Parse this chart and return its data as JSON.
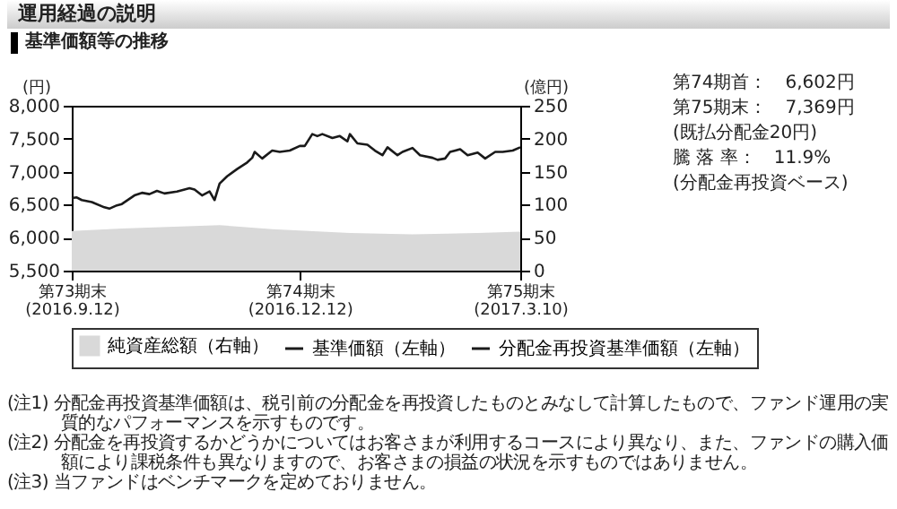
{
  "chart_data": {
    "type": "line",
    "title": "運用経過の説明",
    "subtitle": "基準価額等の推移",
    "ylabel": "(円)",
    "y2label": "(億円)",
    "x": [
      "2016-09-12",
      "2016-09-14",
      "2016-09-16",
      "2016-09-20",
      "2016-09-25",
      "2016-09-27",
      "2016-09-30",
      "2016-10-02",
      "2016-10-07",
      "2016-10-10",
      "2016-10-13",
      "2016-10-16",
      "2016-10-19",
      "2016-10-24",
      "2016-10-29",
      "2016-10-31",
      "2016-11-03",
      "2016-11-06",
      "2016-11-08",
      "2016-11-10",
      "2016-11-13",
      "2016-11-17",
      "2016-11-21",
      "2016-11-23",
      "2016-11-24",
      "2016-11-27",
      "2016-12-01",
      "2016-12-04",
      "2016-12-08",
      "2016-12-12",
      "2016-12-14",
      "2016-12-17",
      "2016-12-19",
      "2016-12-21",
      "2016-12-25",
      "2016-12-28",
      "2016-12-31",
      "2017-01-01",
      "2017-01-04",
      "2017-01-08",
      "2017-01-11",
      "2017-01-14",
      "2017-01-16",
      "2017-01-20",
      "2017-01-22",
      "2017-01-26",
      "2017-01-29",
      "2017-02-03",
      "2017-02-05",
      "2017-02-08",
      "2017-02-10",
      "2017-02-14",
      "2017-02-17",
      "2017-02-21",
      "2017-02-24",
      "2017-02-28",
      "2017-03-03",
      "2017-03-07",
      "2017-03-10"
    ],
    "series": [
      {
        "name": "純資産総額（右軸）",
        "type": "area",
        "axis": "y2",
        "color": "#d9d9d9",
        "x": [
          "2016-09-12",
          "2016-10-02",
          "2016-11-10",
          "2016-12-01",
          "2017-01-01",
          "2017-01-26",
          "2017-02-21",
          "2017-03-10"
        ],
        "values": [
          60,
          64,
          69,
          63,
          57,
          55,
          57,
          59
        ]
      },
      {
        "name": "基準価額（左軸）",
        "color": "#1a1a1a",
        "values": [
          6600,
          6610,
          6570,
          6540,
          6460,
          6440,
          6490,
          6510,
          6640,
          6680,
          6660,
          6710,
          6670,
          6700,
          6750,
          6730,
          6640,
          6700,
          6570,
          6820,
          6930,
          7040,
          7140,
          7210,
          7300,
          7200,
          7320,
          7300,
          7320,
          7390,
          7390,
          7570,
          7540,
          7570,
          7510,
          7540,
          7460,
          7570,
          7430,
          7410,
          7320,
          7250,
          7370,
          7250,
          7300,
          7360,
          7250,
          7210,
          7180,
          7200,
          7300,
          7340,
          7250,
          7290,
          7200,
          7300,
          7300,
          7320,
          7370
        ]
      },
      {
        "name": "分配金再投資基準価額（左軸）",
        "color": "#1a1a1a",
        "values": [
          null,
          null,
          null,
          null,
          null,
          null,
          null,
          null,
          null,
          null,
          null,
          null,
          null,
          null,
          null,
          null,
          null,
          null,
          null,
          null,
          null,
          null,
          null,
          null,
          null,
          null,
          null,
          null,
          null,
          null,
          null,
          null,
          null,
          null,
          null,
          null,
          null,
          null,
          null,
          null,
          null,
          null,
          null,
          null,
          null,
          null,
          null,
          null,
          null,
          null,
          null,
          null,
          null,
          null,
          null,
          null,
          null,
          null,
          null
        ]
      }
    ],
    "xlim": [
      "2016-09-12",
      "2017-03-10"
    ],
    "xticks": [
      {
        "value": "2016-09-12",
        "label": "第73期末\n(2016.9.12)"
      },
      {
        "value": "2016-12-12",
        "label": "第74期末\n(2016.12.12)"
      },
      {
        "value": "2017-03-10",
        "label": "第75期末\n(2017.3.10)"
      }
    ],
    "ylim": [
      5500,
      8000
    ],
    "yticks": [
      {
        "value": 5500,
        "label": "5,500"
      },
      {
        "value": 6000,
        "label": "6,000"
      },
      {
        "value": 6500,
        "label": "6,500"
      },
      {
        "value": 7000,
        "label": "7,000"
      },
      {
        "value": 7500,
        "label": "7,500"
      },
      {
        "value": 8000,
        "label": "8,000"
      }
    ],
    "y2lim": [
      0,
      250
    ],
    "y2ticks": [
      0,
      50,
      100,
      150,
      200,
      250
    ],
    "grid": false,
    "legend": "bottom",
    "line_style": "solid",
    "marker": "none",
    "annotations": [
      "第74期首：　6,602円",
      "第75期末：　7,369円",
      "(既払分配金20円)",
      "騰 落 率：　11.9%",
      "(分配金再投資ベース)",
      "(注1) 分配金再投資基準価額は、税引前の分配金を再投資したものとみなして計算したもので、ファンド運用の実質的なパフォーマンスを示すものです。",
      "(注2) 分配金を再投資するかどうかについてはお客さまが利用するコースにより異なり、また、ファンドの購入価額により課税条件も異なりますので、お客さまの損益の状況を示すものではありません。",
      "(注3) 当ファンドはベンチマークを定めておりません。"
    ]
  }
}
